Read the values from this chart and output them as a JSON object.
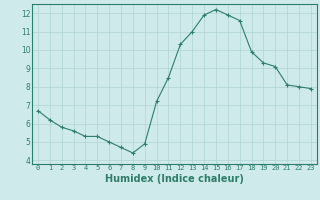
{
  "x": [
    0,
    1,
    2,
    3,
    4,
    5,
    6,
    7,
    8,
    9,
    10,
    11,
    12,
    13,
    14,
    15,
    16,
    17,
    18,
    19,
    20,
    21,
    22,
    23
  ],
  "y": [
    6.7,
    6.2,
    5.8,
    5.6,
    5.3,
    5.3,
    5.0,
    4.7,
    4.4,
    4.9,
    7.2,
    8.5,
    10.3,
    11.0,
    11.9,
    12.2,
    11.9,
    11.6,
    9.9,
    9.3,
    9.1,
    8.1,
    8.0,
    7.9
  ],
  "line_color": "#2e7d6b",
  "marker": "+",
  "marker_size": 3,
  "bg_color": "#ceeaea",
  "grid_color": "#b0d4d4",
  "xlabel": "Humidex (Indice chaleur)",
  "xlabel_fontsize": 7,
  "tick_color": "#2e7d6b",
  "axis_color": "#2e7d6b",
  "xlim": [
    -0.5,
    23.5
  ],
  "ylim": [
    3.8,
    12.5
  ],
  "yticks": [
    4,
    5,
    6,
    7,
    8,
    9,
    10,
    11,
    12
  ],
  "xticks": [
    0,
    1,
    2,
    3,
    4,
    5,
    6,
    7,
    8,
    9,
    10,
    11,
    12,
    13,
    14,
    15,
    16,
    17,
    18,
    19,
    20,
    21,
    22,
    23
  ]
}
